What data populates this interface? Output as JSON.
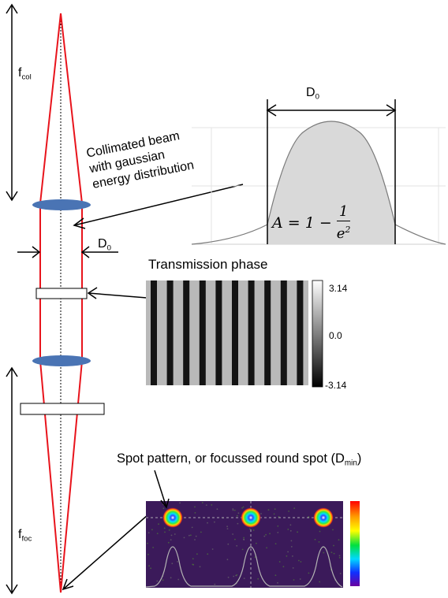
{
  "labels": {
    "f_col_main": "f",
    "f_col_sub": "col",
    "f_foc_main": "f",
    "f_foc_sub": "foc",
    "d0_beam_main": "D",
    "d0_beam_sub": "0",
    "d0_gauss_main": "D",
    "d0_gauss_sub": "0",
    "collimated_line1": "Collimated beam",
    "collimated_line2": "with gaussian",
    "collimated_line3": "energy distribution",
    "transmission_title": "Transmission phase",
    "spot_caption_main": "Spot pattern, or focussed round spot (D",
    "spot_caption_sub": "min",
    "spot_caption_end": ")"
  },
  "colorbar": {
    "max": "3.14",
    "mid": "0.0",
    "min": "-3.14"
  },
  "formula": {
    "lhs": "A = 1 −",
    "numerator": "1",
    "denominator_base": "e",
    "denominator_exp": "2"
  },
  "colors": {
    "beam": "#e8141c",
    "lens": "#4a74b4",
    "gauss_fill": "#d9d9d9",
    "spot_bg": "#3b1a5a"
  }
}
